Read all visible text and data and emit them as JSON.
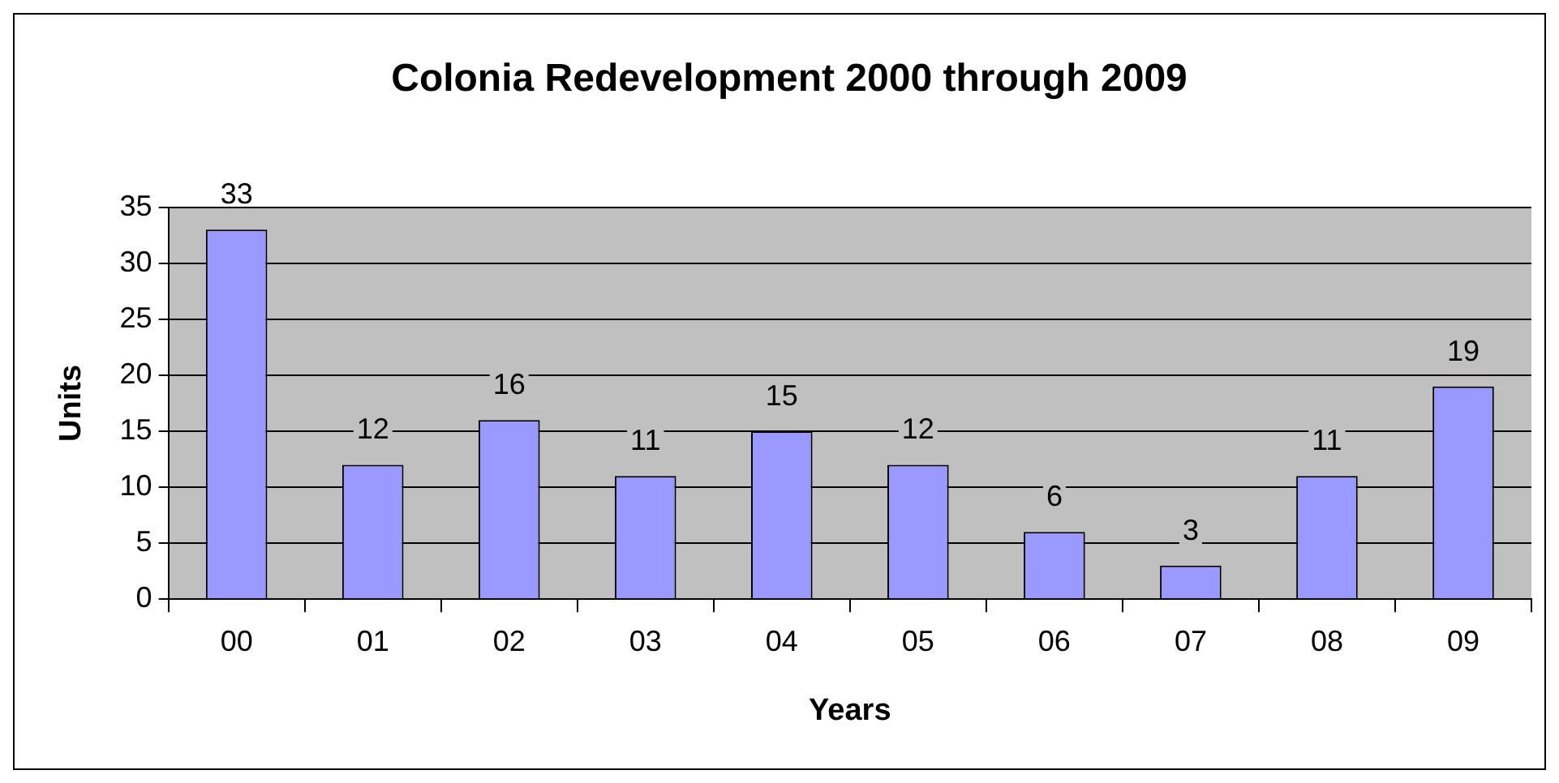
{
  "chart_data": {
    "type": "bar",
    "title": "Colonia Redevelopment 2000 through 2009",
    "xlabel": "Years",
    "ylabel": "Units",
    "categories": [
      "00",
      "01",
      "02",
      "03",
      "04",
      "05",
      "06",
      "07",
      "08",
      "09"
    ],
    "values": [
      33,
      12,
      16,
      11,
      15,
      12,
      6,
      3,
      11,
      19
    ],
    "color": "#9999ff",
    "ylim": [
      0,
      35
    ],
    "yticks": [
      0,
      5,
      10,
      15,
      20,
      25,
      30,
      35
    ],
    "grid": "y",
    "data_labels": true,
    "legend": false
  }
}
